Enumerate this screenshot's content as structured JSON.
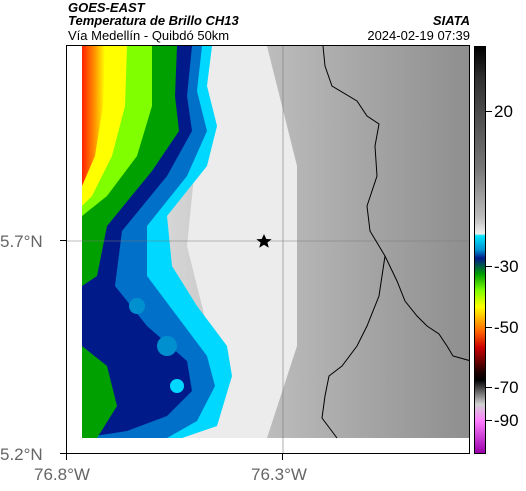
{
  "header": {
    "title1": "GOES-EAST",
    "title2": "Temperatura de Brillo CH13",
    "subtitle": "Vía Medellín - Quibdó 50km",
    "brand": "SIATA",
    "datetime": "2024-02-19 07:39"
  },
  "axes": {
    "lat_ticks": [
      "5.7°N",
      "5.2°N"
    ],
    "lon_ticks": [
      "76.8°W",
      "76.3°W"
    ]
  },
  "colorbar": {
    "labels": [
      "20",
      "-30",
      "-50",
      "-70",
      "-90"
    ]
  },
  "map": {
    "marker_icon": "star-icon",
    "colors": {
      "cold_core": "#001a8a",
      "warm_bg": "#9a9a9a"
    }
  }
}
